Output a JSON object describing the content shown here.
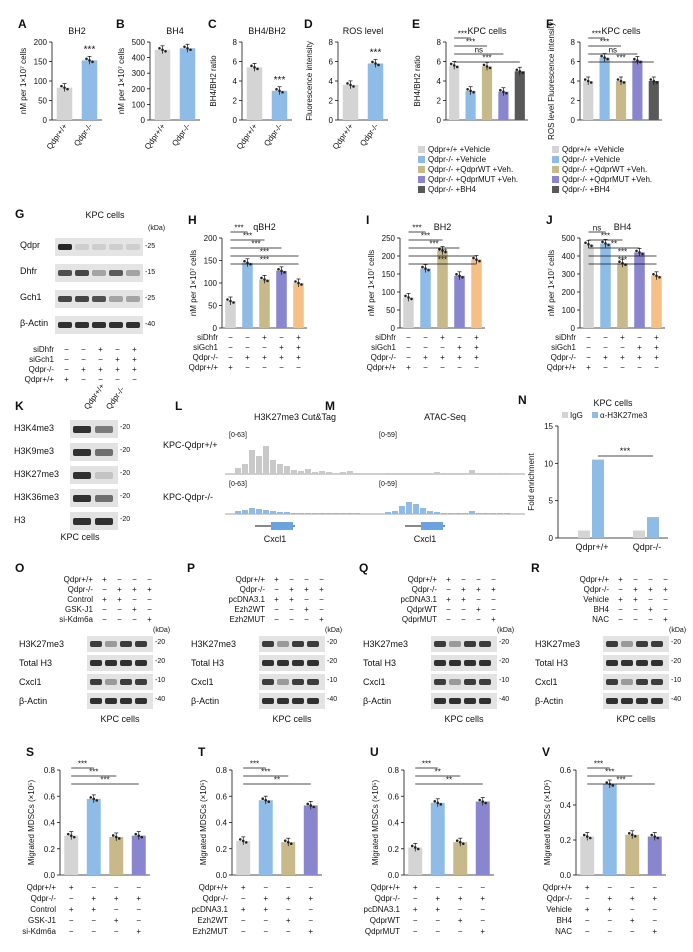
{
  "figure": {
    "panels": {
      "A": {
        "letter": "A",
        "title": "BH2",
        "ylabel": "nM per 1×10⁷ cells",
        "yticks": [
          "0",
          "50",
          "100",
          "150",
          "200"
        ],
        "ymax": 200,
        "categories": [
          "Qdpr+/+",
          "Qdpr-/-"
        ],
        "values": [
          83,
          153
        ],
        "colors": [
          "#d4d4d4",
          "#8fbce6"
        ],
        "sig": "***"
      },
      "B": {
        "letter": "B",
        "title": "BH4",
        "ylabel": "nM per 1×10⁷ cells",
        "yticks": [
          "0",
          "100",
          "200",
          "300",
          "400",
          "500"
        ],
        "ymax": 500,
        "categories": [
          "Qdpr+/+",
          "Qdpr-/-"
        ],
        "values": [
          450,
          460
        ],
        "colors": [
          "#d4d4d4",
          "#8fbce6"
        ]
      },
      "C": {
        "letter": "C",
        "title": "BH4/BH2",
        "ylabel": "BH4/BH2 ratio",
        "yticks": [
          "0",
          "2",
          "4",
          "6",
          "8"
        ],
        "ymax": 8,
        "categories": [
          "Qdpr+/+",
          "Qdpr-/-"
        ],
        "values": [
          5.4,
          3.0
        ],
        "colors": [
          "#d4d4d4",
          "#8fbce6"
        ],
        "sig": "***"
      },
      "D": {
        "letter": "D",
        "title": "ROS level",
        "ylabel": "Fluorescence intensity",
        "yticks": [
          "0",
          "2",
          "4",
          "6",
          "8"
        ],
        "ymax": 8,
        "categories": [
          "Qdpr+/+",
          "Qdpr-/-"
        ],
        "values": [
          3.6,
          5.8
        ],
        "colors": [
          "#d4d4d4",
          "#8fbce6"
        ],
        "sig": "***"
      },
      "E": {
        "letter": "E",
        "title": "KPC cells",
        "ylabel": "BH4/BH2 ratio",
        "yticks": [
          "0",
          "2",
          "4",
          "6",
          "8"
        ],
        "ymax": 8,
        "values": [
          5.6,
          3.0,
          5.5,
          2.9,
          5.0
        ],
        "colors": [
          "#d4d4d4",
          "#8fbce6",
          "#c8b98a",
          "#8a85cf",
          "#595959"
        ],
        "brackets": [
          "***",
          "***",
          "ns",
          "***"
        ]
      },
      "F": {
        "letter": "F",
        "title": "KPC cells",
        "ylabel": "ROS level Fluorescence intensity",
        "yticks": [
          "0",
          "2",
          "4",
          "6",
          "8"
        ],
        "ymax": 8,
        "values": [
          4.0,
          6.4,
          4.0,
          6.1,
          4.0
        ],
        "colors": [
          "#d4d4d4",
          "#8fbce6",
          "#c8b98a",
          "#8a85cf",
          "#595959"
        ],
        "brackets": [
          "***",
          "***",
          "ns",
          "***"
        ]
      },
      "H": {
        "letter": "H",
        "title": "qBH2",
        "ylabel": "nM per 1×10⁷ cells",
        "yticks": [
          "0",
          "50",
          "100",
          "150",
          "200"
        ],
        "ymax": 200,
        "values": [
          60,
          145,
          108,
          127,
          100
        ],
        "colors": [
          "#d4d4d4",
          "#8fbce6",
          "#c8b98a",
          "#8a85cf",
          "#f5bf86"
        ],
        "brackets": [
          "***",
          "***",
          "***",
          "***",
          "***"
        ]
      },
      "I": {
        "letter": "I",
        "title": "BH2",
        "ylabel": "nM per 1×10⁷ cells",
        "yticks": [
          "0",
          "50",
          "100",
          "150",
          "200",
          "250"
        ],
        "ymax": 250,
        "values": [
          85,
          165,
          215,
          145,
          190
        ],
        "colors": [
          "#d4d4d4",
          "#8fbce6",
          "#c8b98a",
          "#8a85cf",
          "#f5bf86"
        ],
        "brackets": [
          "***",
          "***",
          "***",
          "***",
          "***"
        ]
      },
      "J": {
        "letter": "J",
        "title": "BH4",
        "ylabel": "nM per 1×10⁷ cells",
        "yticks": [
          "0",
          "100",
          "200",
          "300",
          "400",
          "500"
        ],
        "ymax": 500,
        "values": [
          465,
          470,
          360,
          420,
          290
        ],
        "colors": [
          "#d4d4d4",
          "#8fbce6",
          "#c8b98a",
          "#8a85cf",
          "#f5bf86"
        ],
        "brackets": [
          "ns",
          "***",
          "**",
          "***",
          "***"
        ]
      },
      "N": {
        "letter": "N",
        "title": "KPC cells",
        "ylabel": "Fold enrichment",
        "yticks": [
          "0",
          "5",
          "10",
          "15"
        ],
        "ymax": 15,
        "categories": [
          "Qdpr+/+",
          "Qdpr-/-"
        ],
        "legend": [
          "IgG",
          "α-H3K27me3"
        ],
        "igg": [
          1,
          1
        ],
        "ab": [
          10.5,
          2.8
        ],
        "sig": "***"
      },
      "S": {
        "letter": "S",
        "ylabel": "Migrated MDSCs (×10⁵)",
        "yticks": [
          "0.0",
          "0.2",
          "0.4",
          "0.6",
          "0.8"
        ],
        "ymax": 0.8,
        "values": [
          0.3,
          0.58,
          0.29,
          0.3
        ],
        "colors": [
          "#d4d4d4",
          "#8fbce6",
          "#c8b98a",
          "#8a85cf"
        ],
        "brackets": [
          "***",
          "***",
          "***"
        ],
        "rows": [
          [
            "Qdpr+/+",
            "+",
            "−",
            "−",
            "−"
          ],
          [
            "Qdpr-/-",
            "−",
            "+",
            "+",
            "+"
          ],
          [
            "Control",
            "+",
            "+",
            "−",
            "−"
          ],
          [
            "GSK-J1",
            "−",
            "−",
            "+",
            "−"
          ],
          [
            "si-Kdm6a",
            "−",
            "−",
            "−",
            "+"
          ]
        ]
      },
      "T": {
        "letter": "T",
        "ylabel": "Migrated MDSCs (×10⁵)",
        "yticks": [
          "0.0",
          "0.2",
          "0.4",
          "0.6",
          "0.8"
        ],
        "ymax": 0.8,
        "values": [
          0.26,
          0.57,
          0.25,
          0.53
        ],
        "colors": [
          "#d4d4d4",
          "#8fbce6",
          "#c8b98a",
          "#8a85cf"
        ],
        "brackets": [
          "***",
          "***",
          "**"
        ],
        "rows": [
          [
            "Qdpr+/+",
            "+",
            "−",
            "−",
            "−"
          ],
          [
            "Qdpr-/-",
            "−",
            "+",
            "+",
            "+"
          ],
          [
            "pcDNA3.1",
            "+",
            "+",
            "−",
            "−"
          ],
          [
            "Ezh2WT",
            "−",
            "−",
            "+",
            "−"
          ],
          [
            "Ezh2MUT",
            "−",
            "−",
            "−",
            "+"
          ]
        ]
      },
      "U": {
        "letter": "U",
        "ylabel": "Migrated MDSCs (×10⁵)",
        "yticks": [
          "0.0",
          "0.2",
          "0.4",
          "0.6",
          "0.8"
        ],
        "ymax": 0.8,
        "values": [
          0.21,
          0.55,
          0.25,
          0.56
        ],
        "colors": [
          "#d4d4d4",
          "#8fbce6",
          "#c8b98a",
          "#8a85cf"
        ],
        "brackets": [
          "***",
          "**",
          "**"
        ],
        "rows": [
          [
            "Qdpr+/+",
            "+",
            "−",
            "−",
            "−"
          ],
          [
            "Qdpr-/-",
            "−",
            "+",
            "+",
            "+"
          ],
          [
            "pcDNA3.1",
            "+",
            "+",
            "−",
            "−"
          ],
          [
            "QdprWT",
            "−",
            "−",
            "+",
            "−"
          ],
          [
            "QdprMUT",
            "−",
            "−",
            "−",
            "+"
          ]
        ]
      },
      "V": {
        "letter": "V",
        "ylabel": "Migrated MDSCs (×10⁵)",
        "yticks": [
          "0.0",
          "0.2",
          "0.4",
          "0.6"
        ],
        "ymax": 0.6,
        "values": [
          0.22,
          0.52,
          0.23,
          0.22
        ],
        "colors": [
          "#d4d4d4",
          "#8fbce6",
          "#c8b98a",
          "#8a85cf"
        ],
        "brackets": [
          "***",
          "***",
          "***"
        ],
        "rows": [
          [
            "Qdpr+/+",
            "+",
            "−",
            "−",
            "−"
          ],
          [
            "Qdpr-/-",
            "−",
            "+",
            "+",
            "+"
          ],
          [
            "Vehicle",
            "+",
            "+",
            "−",
            "−"
          ],
          [
            "BH4",
            "−",
            "−",
            "+",
            "−"
          ],
          [
            "NAC",
            "−",
            "−",
            "−",
            "+"
          ]
        ]
      }
    },
    "legend_EF": [
      "Qdpr+/+ +Vehicle",
      "Qdpr-/- +Vehicle",
      "Qdpr-/- +QdprWT +Veh.",
      "Qdpr-/- +QdprMUT +Veh.",
      "Qdpr-/- +BH4"
    ],
    "hij_rows": [
      [
        "siDhfr",
        "−",
        "−",
        "+",
        "−",
        "+"
      ],
      [
        "siGch1",
        "−",
        "−",
        "−",
        "+",
        "+"
      ],
      [
        "Qdpr-/-",
        "−",
        "+",
        "+",
        "+",
        "+"
      ],
      [
        "Qdpr+/+",
        "+",
        "−",
        "−",
        "−",
        "−"
      ]
    ],
    "blotG": {
      "letter": "G",
      "title": "KPC cells",
      "kda": "(kDa)",
      "bands": [
        "Qdpr",
        "Dhfr",
        "Gch1",
        "β-Actin"
      ],
      "markers": [
        "25",
        "15",
        "25",
        "40"
      ],
      "rows": [
        [
          "siDhfr",
          "−",
          "−",
          "+",
          "−",
          "+"
        ],
        [
          "siGch1",
          "−",
          "−",
          "−",
          "+",
          "+"
        ],
        [
          "Qdpr-/-",
          "−",
          "+",
          "+",
          "+",
          "+"
        ],
        [
          "Qdpr+/+",
          "+",
          "−",
          "−",
          "−",
          "−"
        ]
      ]
    },
    "blotK": {
      "letter": "K",
      "cols": [
        "Qdpr+/+",
        "Qdpr-/-"
      ],
      "bands": [
        "H3K4me3",
        "H3K9me3",
        "H3K27me3",
        "H3K36me3",
        "H3"
      ],
      "markers": [
        "20",
        "20",
        "20",
        "20",
        "20"
      ],
      "footer": "KPC cells"
    },
    "tracks": {
      "L": {
        "letter": "L",
        "title": "H3K27me3 Cut&Tag",
        "range1": "[0-63]",
        "range2": "[0-63]",
        "gene": "Cxcl1"
      },
      "M": {
        "letter": "M",
        "title": "ATAC-Seq",
        "range1": "[0-59]",
        "range2": "[0-59]",
        "gene": "Cxcl1"
      },
      "track_labels": [
        "KPC-Qdpr+/+",
        "KPC-Qdpr-/-"
      ]
    },
    "blots_bottom": {
      "O": {
        "letter": "O",
        "rows": [
          [
            "Qdpr+/+",
            "+",
            "−",
            "−",
            "−"
          ],
          [
            "Qdpr-/-",
            "−",
            "+",
            "+",
            "+"
          ],
          [
            "Control",
            "+",
            "+",
            "−",
            "−"
          ],
          [
            "GSK-J1",
            "−",
            "−",
            "+",
            "−"
          ],
          [
            "si-Kdm6a",
            "−",
            "−",
            "−",
            "+"
          ]
        ]
      },
      "P": {
        "letter": "P",
        "rows": [
          [
            "Qdpr+/+",
            "+",
            "−",
            "−",
            "−"
          ],
          [
            "Qdpr-/-",
            "−",
            "+",
            "+",
            "+"
          ],
          [
            "pcDNA3.1",
            "+",
            "+",
            "−",
            "−"
          ],
          [
            "Ezh2WT",
            "−",
            "−",
            "+",
            "−"
          ],
          [
            "Ezh2MUT",
            "−",
            "−",
            "−",
            "+"
          ]
        ]
      },
      "Q": {
        "letter": "Q",
        "rows": [
          [
            "Qdpr+/+",
            "+",
            "−",
            "−",
            "−"
          ],
          [
            "Qdpr-/-",
            "−",
            "+",
            "+",
            "+"
          ],
          [
            "pcDNA3.1",
            "+",
            "+",
            "−",
            "−"
          ],
          [
            "QdprWT",
            "−",
            "−",
            "+",
            "−"
          ],
          [
            "QdprMUT",
            "−",
            "−",
            "−",
            "+"
          ]
        ]
      },
      "R": {
        "letter": "R",
        "rows": [
          [
            "Qdpr+/+",
            "+",
            "−",
            "−",
            "−"
          ],
          [
            "Qdpr-/-",
            "−",
            "+",
            "+",
            "+"
          ],
          [
            "Vehicle",
            "+",
            "+",
            "−",
            "−"
          ],
          [
            "BH4",
            "−",
            "−",
            "+",
            "−"
          ],
          [
            "NAC",
            "−",
            "−",
            "−",
            "+"
          ]
        ]
      },
      "bands": [
        "H3K27me3",
        "Total H3",
        "Cxcl1",
        "β-Actin"
      ],
      "markers": [
        "20",
        "20",
        "10",
        "40"
      ],
      "kda": "(kDa)",
      "footer": "KPC cells"
    }
  }
}
